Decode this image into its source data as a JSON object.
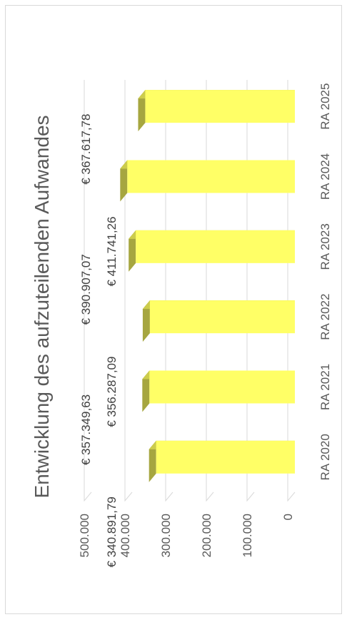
{
  "chart_data": {
    "type": "bar",
    "title": "Entwicklung des aufzuteilenden Aufwandes",
    "categories": [
      "RA 2020",
      "RA 2021",
      "RA 2022",
      "RA 2023",
      "RA 2024",
      "RA 2025"
    ],
    "values": [
      340891.79,
      357349.63,
      356287.09,
      390907.07,
      411741.26,
      367617.78
    ],
    "data_labels": [
      "€ 340.891,79",
      "€ 357.349,63",
      "€ 356.287,09",
      "€ 390.907,07",
      "€ 411.741,26",
      "€ 367.617,78"
    ],
    "value_ticks": [
      "0",
      "100.000",
      "200.000",
      "300.000",
      "400.000",
      "500.000"
    ],
    "ylim": [
      0,
      500000
    ],
    "orientation": "rotated-90-ccw",
    "style": "3d-column",
    "grid": true,
    "legend": "none",
    "colors": {
      "bar_front": "#ffff66",
      "bar_top": "#a6a640",
      "bar_side": "#cccc4c",
      "grid": "#d9d9d9",
      "text": "#595959"
    }
  }
}
